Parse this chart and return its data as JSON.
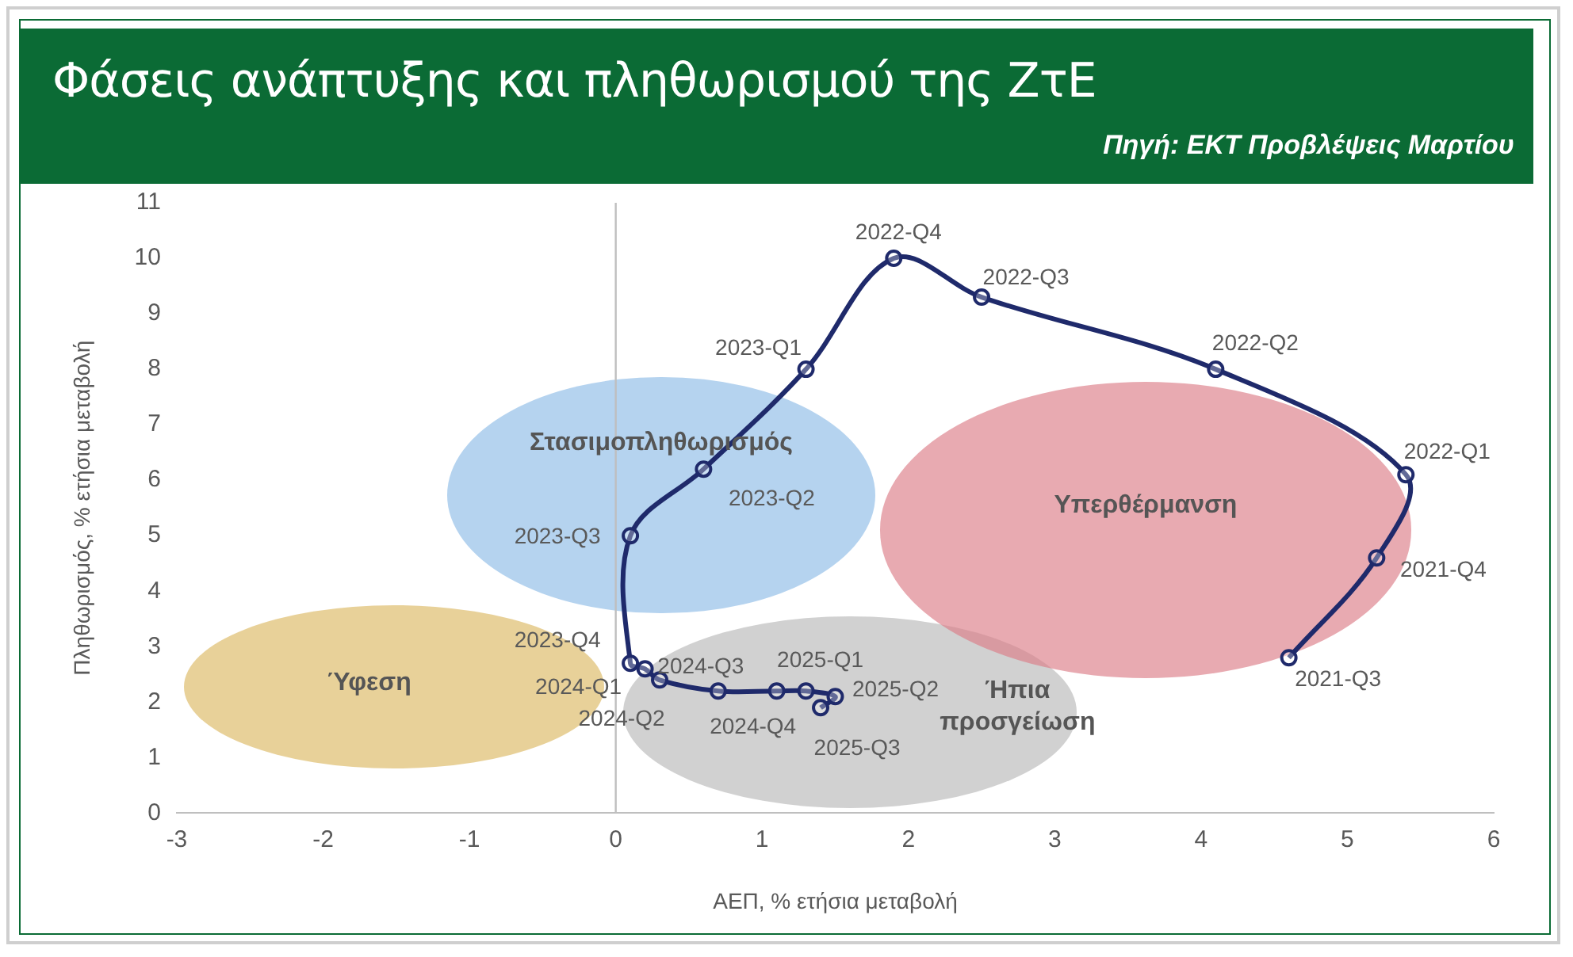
{
  "chart_data": {
    "type": "line",
    "title": "Φάσεις ανάπτυξης και πληθωρισμού της ΖτΕ",
    "xlabel": "ΑΕΠ, % ετήσια μεταβολή",
    "ylabel": "Πληθωρισμός, % ετήσια μεταβολή",
    "x": [
      4.6,
      5.2,
      5.4,
      4.1,
      2.5,
      1.9,
      1.3,
      0.6,
      0.1,
      0.1,
      0.2,
      0.3,
      0.7,
      1.1,
      1.3,
      1.5,
      1.4
    ],
    "series": [
      {
        "color": "#1f2a6b",
        "values": [
          2.8,
          4.6,
          6.1,
          8.0,
          9.3,
          10.0,
          8.0,
          6.2,
          5.0,
          2.7,
          2.6,
          2.4,
          2.2,
          2.2,
          2.2,
          2.1,
          1.9
        ]
      }
    ],
    "xlim": [
      -3,
      6
    ],
    "xticks": [
      -3,
      -2,
      -1,
      0,
      1,
      2,
      3,
      4,
      5,
      6
    ],
    "ylim": [
      0,
      11
    ],
    "yticks": [
      0,
      1,
      2,
      3,
      4,
      5,
      6,
      7,
      8,
      9,
      10,
      11
    ],
    "grid": false,
    "legend": false,
    "marker": "circle",
    "line_style": "solid",
    "ref_lines": [
      {
        "axis": "x",
        "value": 0,
        "color": "#bfbfbf"
      }
    ],
    "annotations": [
      "Πηγή: ΕΚΤ Προβλέψεις Μαρτίου",
      {
        "text": "2021-Q3",
        "x": 4.6,
        "y": 2.8
      },
      {
        "text": "2021-Q4",
        "x": 5.2,
        "y": 4.6
      },
      {
        "text": "2022-Q1",
        "x": 5.4,
        "y": 6.1
      },
      {
        "text": "2022-Q2",
        "x": 4.1,
        "y": 8.0
      },
      {
        "text": "2022-Q3",
        "x": 2.5,
        "y": 9.3
      },
      {
        "text": "2022-Q4",
        "x": 1.9,
        "y": 10.0
      },
      {
        "text": "2023-Q1",
        "x": 1.3,
        "y": 8.0
      },
      {
        "text": "2023-Q2",
        "x": 0.6,
        "y": 6.2
      },
      {
        "text": "2023-Q3",
        "x": 0.1,
        "y": 5.0
      },
      {
        "text": "2023-Q4",
        "x": 0.1,
        "y": 2.7
      },
      {
        "text": "2024-Q1",
        "x": 0.2,
        "y": 2.6
      },
      {
        "text": "2024-Q2",
        "x": 0.3,
        "y": 2.4
      },
      {
        "text": "2024-Q3",
        "x": 0.7,
        "y": 2.2
      },
      {
        "text": "2024-Q4",
        "x": 1.1,
        "y": 2.2
      },
      {
        "text": "2025-Q1",
        "x": 1.3,
        "y": 2.2
      },
      {
        "text": "2025-Q2",
        "x": 1.5,
        "y": 2.1
      },
      {
        "text": "2025-Q3",
        "x": 1.4,
        "y": 1.9
      },
      "Στασιμοπληθωρισμός",
      "Υπερθέρμανση",
      "Ύφεση",
      "Ήπια προσγείωση"
    ]
  }
}
